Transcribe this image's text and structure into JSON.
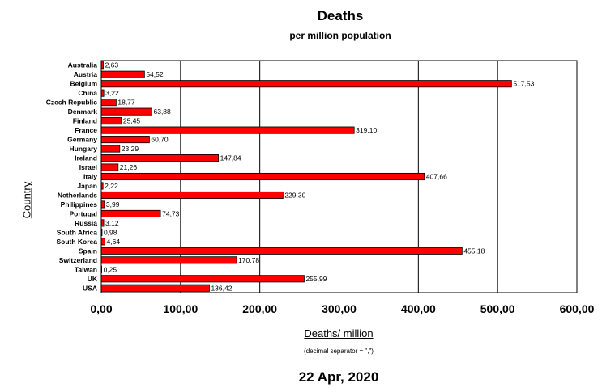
{
  "chart_data": {
    "type": "bar",
    "orientation": "horizontal",
    "title": "Deaths",
    "subtitle": "per million population",
    "ylabel": "Country",
    "xlabel": "Deaths/ million",
    "note": "(decimal separator = \",\")",
    "date": "22 Apr, 2020",
    "xlim": [
      0,
      600
    ],
    "xticks": [
      "0,00",
      "100,00",
      "200,00",
      "300,00",
      "400,00",
      "500,00",
      "600,00"
    ],
    "grid": "vertical",
    "bar_color": "#ff0000",
    "categories": [
      "Australia",
      "Austria",
      "Belgium",
      "China",
      "Czech Republic",
      "Denmark",
      "Finland",
      "France",
      "Germany",
      "Hungary",
      "Ireland",
      "Israel",
      "Italy",
      "Japan",
      "Netherlands",
      "Philippines",
      "Portugal",
      "Russia",
      "South Africa",
      "South Korea",
      "Spain",
      "Switzerland",
      "Taiwan",
      "UK",
      "USA"
    ],
    "values": [
      2.63,
      54.52,
      517.53,
      3.22,
      18.77,
      63.88,
      25.45,
      319.1,
      60.7,
      23.29,
      147.84,
      21.26,
      407.66,
      2.22,
      229.3,
      3.99,
      74.73,
      3.12,
      0.98,
      4.64,
      455.18,
      170.78,
      0.25,
      255.99,
      136.42
    ],
    "value_labels": [
      "2,63",
      "54,52",
      "517,53",
      "3,22",
      "18,77",
      "63,88",
      "25,45",
      "319,10",
      "60,70",
      "23,29",
      "147,84",
      "21,26",
      "407,66",
      "2,22",
      "229,30",
      "3,99",
      "74,73",
      "3,12",
      "0,98",
      "4,64",
      "455,18",
      "170,78",
      "0,25",
      "255,99",
      "136,42"
    ]
  }
}
